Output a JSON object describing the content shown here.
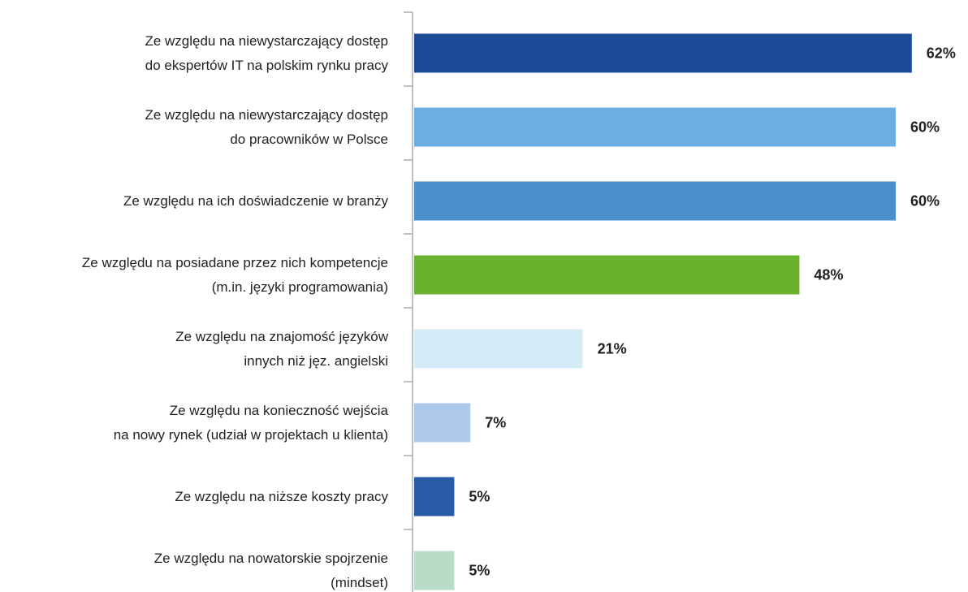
{
  "chart_data": {
    "type": "barh",
    "categories": [
      "Ze względu na niewystarczający dostęp\ndo ekspertów IT na polskim rynku pracy",
      "Ze względu na niewystarczający dostęp\ndo pracowników w Polsce",
      "Ze względu na ich doświadczenie w branży",
      "Ze względu na posiadane przez nich kompetencje\n(m.in. języki programowania)",
      "Ze względu na znajomość języków\ninnych niż jęz. angielski",
      "Ze względu na konieczność wejścia\nna nowy rynek (udział w projektach u klienta)",
      "Ze względu na niższe koszty pracy",
      "Ze względu na nowatorskie spojrzenie\n(mindset)"
    ],
    "values": [
      62,
      60,
      60,
      48,
      21,
      7,
      5,
      5
    ],
    "value_labels": [
      "62%",
      "60%",
      "60%",
      "48%",
      "21%",
      "7%",
      "5%",
      "5%"
    ],
    "colors": [
      "#1c4a96",
      "#6eaddf",
      "#4b8fcf",
      "#6ab22e",
      "#d6ebf8",
      "#aec8ec",
      "#2a5ba8",
      "#b9dcc8"
    ],
    "xlim": [
      0,
      69
    ]
  }
}
